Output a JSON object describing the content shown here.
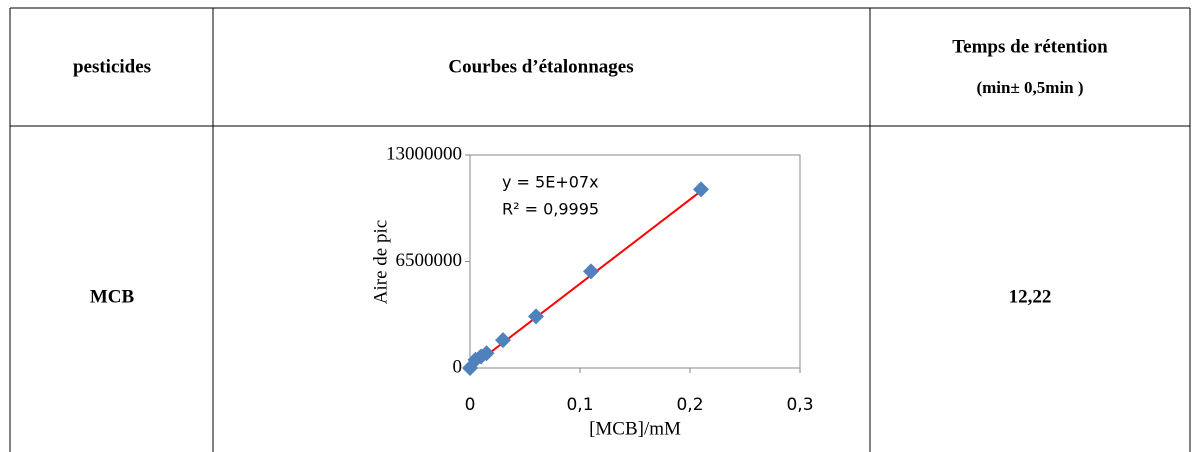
{
  "table": {
    "header": [
      "pesticides",
      "Courbes d’étalonnages",
      "Temps de rétention",
      "(min± 0,5min )"
    ],
    "rows": [
      {
        "label": "MCB",
        "retention": "12,22",
        "chart_data": {
          "type": "scatter",
          "x": [
            0,
            0.005,
            0.01,
            0.015,
            0.03,
            0.06,
            0.11,
            0.21
          ],
          "values": [
            0,
            500000,
            700000,
            900000,
            1700000,
            3150000,
            5900000,
            10900000
          ],
          "color": "#4f81bd",
          "xlim": [
            0,
            0.3
          ],
          "xticks": [
            0,
            {
              "value": 0.1,
              "label": "0,1"
            },
            {
              "value": 0.2,
              "label": "0,2"
            },
            {
              "value": 0.3,
              "label": "0,3"
            }
          ],
          "ylim": [
            0,
            13000000
          ],
          "yticks": [
            0,
            6500000,
            13000000
          ],
          "xlabel": "[MCB]/mM",
          "ylabel": "Aire de pic",
          "annotations": [
            "y = 5E+07x",
            "R² = 0,9995"
          ],
          "trendline": {
            "color": "#ff0000",
            "x": [
              0,
              0.21
            ],
            "values": [
              0,
              10800000
            ]
          }
        }
      }
    ]
  }
}
